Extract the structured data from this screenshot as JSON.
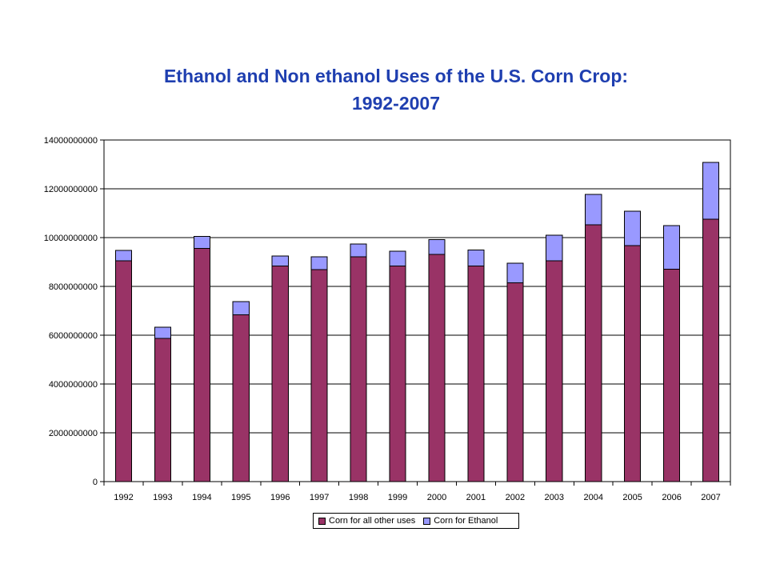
{
  "chart_data": {
    "type": "bar",
    "stacked": true,
    "title_lines": [
      "Ethanol and Non ethanol Uses of the U.S. Corn Crop:",
      "1992-2007"
    ],
    "xlabel": "",
    "ylabel": "",
    "categories": [
      "1992",
      "1993",
      "1994",
      "1995",
      "1996",
      "1997",
      "1998",
      "1999",
      "2000",
      "2001",
      "2002",
      "2003",
      "2004",
      "2005",
      "2006",
      "2007"
    ],
    "series": [
      {
        "name": "Corn for all other uses",
        "color": "#993366",
        "values": [
          9050000000,
          5870000000,
          9550000000,
          6840000000,
          8840000000,
          8690000000,
          9210000000,
          8840000000,
          9310000000,
          8840000000,
          8150000000,
          9050000000,
          10530000000,
          9680000000,
          8700000000,
          10760000000
        ]
      },
      {
        "name": "Corn for Ethanol",
        "color": "#9999ff",
        "values": [
          430000000,
          460000000,
          500000000,
          540000000,
          400000000,
          520000000,
          530000000,
          600000000,
          600000000,
          660000000,
          800000000,
          1050000000,
          1240000000,
          1410000000,
          1800000000,
          2320000000
        ]
      }
    ],
    "ylim": [
      0,
      14000000000
    ],
    "yticks": [
      0,
      2000000000,
      4000000000,
      6000000000,
      8000000000,
      10000000000,
      12000000000,
      14000000000
    ],
    "ytick_labels": [
      "0",
      "2000000000",
      "4000000000",
      "6000000000",
      "8000000000",
      "10000000000",
      "12000000000",
      "14000000000"
    ],
    "grid": true,
    "legend_position": "bottom"
  }
}
